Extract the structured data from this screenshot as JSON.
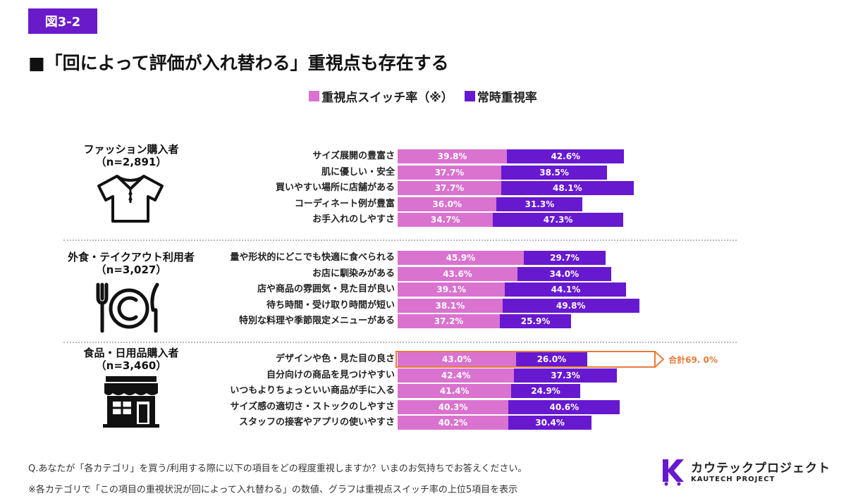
{
  "figure_label": "図3-2",
  "title": "■「回によって評価が入れ替わる」重視点も存在する",
  "legend": [
    {
      "label": "重視点スイッチ率（※）",
      "color": "#da72cf"
    },
    {
      "label": "常時重視率",
      "color": "#6719d0"
    }
  ],
  "chart_data": {
    "type": "bar",
    "stacked": true,
    "orientation": "horizontal",
    "unit": "%",
    "series_names": [
      "重視点スイッチ率（※）",
      "常時重視率"
    ],
    "groups": [
      {
        "name": "ファッション購入者",
        "n": "（n=2,891）",
        "icon": "shirt-icon",
        "items": [
          {
            "label": "サイズ展開の豊富さ",
            "switch": 39.8,
            "always": 42.6,
            "switch_label": "39.8%",
            "always_label": "42.6%"
          },
          {
            "label": "肌に優しい・安全",
            "switch": 37.7,
            "always": 38.5,
            "switch_label": "37.7%",
            "always_label": "38.5%"
          },
          {
            "label": "買いやすい場所に店舗がある",
            "switch": 37.7,
            "always": 48.1,
            "switch_label": "37.7%",
            "always_label": "48.1%"
          },
          {
            "label": "コーディネート例が豊富",
            "switch": 36.0,
            "always": 31.3,
            "switch_label": "36.0%",
            "always_label": "31.3%"
          },
          {
            "label": "お手入れのしやすさ",
            "switch": 34.7,
            "always": 47.3,
            "switch_label": "34.7%",
            "always_label": "47.3%"
          }
        ]
      },
      {
        "name": "外食・テイクアウト利用者",
        "n": "（n=3,027）",
        "icon": "plate-cutlery-icon",
        "items": [
          {
            "label": "量や形状的にどこでも快適に食べられる",
            "switch": 45.9,
            "always": 29.7,
            "switch_label": "45.9%",
            "always_label": "29.7%"
          },
          {
            "label": "お店に馴染みがある",
            "switch": 43.6,
            "always": 34.0,
            "switch_label": "43.6%",
            "always_label": "34.0%"
          },
          {
            "label": "店や商品の雰囲気・見た目が良い",
            "switch": 39.1,
            "always": 44.1,
            "switch_label": "39.1%",
            "always_label": "44.1%"
          },
          {
            "label": "待ち時間・受け取り時間が短い",
            "switch": 38.1,
            "always": 49.8,
            "switch_label": "38.1%",
            "always_label": "49.8%"
          },
          {
            "label": "特別な料理や季節限定メニューがある",
            "switch": 37.2,
            "always": 25.9,
            "switch_label": "37.2%",
            "always_label": "25.9%"
          }
        ]
      },
      {
        "name": "食品・日用品購入者",
        "n": "（n=3,460）",
        "icon": "store-icon",
        "items": [
          {
            "label": "デザインや色・見た目の良さ",
            "switch": 43.0,
            "always": 26.0,
            "switch_label": "43.0%",
            "always_label": "26.0%",
            "highlight": "合計69. 0%",
            "highlight_total": 69.0
          },
          {
            "label": "自分向けの商品を見つけやすい",
            "switch": 42.4,
            "always": 37.3,
            "switch_label": "42.4%",
            "always_label": "37.3%"
          },
          {
            "label": "いつもよりちょっといい商品が手に入る",
            "switch": 41.4,
            "always": 24.9,
            "switch_label": "41.4%",
            "always_label": "24.9%"
          },
          {
            "label": "サイズ感の適切さ・ストックのしやすさ",
            "switch": 40.3,
            "always": 40.6,
            "switch_label": "40.3%",
            "always_label": "40.6%"
          },
          {
            "label": "スタッフの接客やアプリの使いやすさ",
            "switch": 40.2,
            "always": 30.4,
            "switch_label": "40.2%",
            "always_label": "30.4%"
          }
        ]
      }
    ]
  },
  "footnotes": [
    "Q.あなたが「各カテゴリ」を買う/利用する際に以下の項目をどの程度重視しますか？いまのお気持ちでお答えください。",
    "※各カテゴリで「この項目の重視状況が回によって入れ替わる」の数値、グラフは重視点スイッチ率の上位5項目を表示"
  ],
  "brand": {
    "name": "カウテックプロジェクト",
    "sub": "KAUTECH PROJECT",
    "color": "#6719d0"
  }
}
